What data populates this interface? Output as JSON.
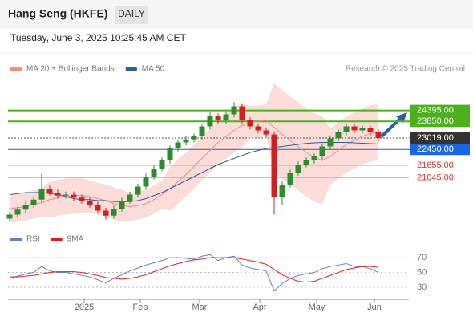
{
  "header": {
    "title": "Hang Seng (HKFE)",
    "timeframe": "DAILY",
    "timestamp": "Tuesday, June 3, 2025 10:25:45 AM CET"
  },
  "chart_data": [
    {
      "type": "candlestick",
      "source": "Research © 2025 Trading Central",
      "xlim": [
        0,
        50
      ],
      "ylim": [
        18900,
        26100
      ],
      "up_color": "#2e8b2e",
      "down_color": "#cc2222",
      "open": [
        19000,
        19200,
        19450,
        19700,
        19950,
        20500,
        20300,
        20150,
        20200,
        20050,
        19900,
        19700,
        19400,
        19150,
        19500,
        19900,
        20200,
        20600,
        21100,
        21500,
        21900,
        22500,
        22800,
        22950,
        23100,
        23600,
        24100,
        23900,
        24200,
        24600,
        23900,
        23600,
        23400,
        23200,
        20100,
        20700,
        21300,
        21700,
        21900,
        22100,
        22600,
        23000,
        23300,
        23600,
        23400,
        23500,
        23300
      ],
      "high": [
        19350,
        19600,
        19850,
        20100,
        21300,
        20650,
        20450,
        20350,
        20350,
        20200,
        20050,
        19850,
        19550,
        19650,
        20050,
        20350,
        20750,
        21250,
        21650,
        22050,
        22650,
        22950,
        23100,
        23250,
        23750,
        24300,
        24250,
        24350,
        24800,
        24750,
        24050,
        23750,
        23550,
        23350,
        20850,
        21450,
        21850,
        22050,
        22250,
        22750,
        23150,
        23450,
        23750,
        23750,
        23650,
        23650,
        23450
      ],
      "low": [
        18850,
        19050,
        19300,
        19550,
        19800,
        20150,
        20000,
        20000,
        19900,
        19750,
        19550,
        19250,
        18950,
        19000,
        19350,
        19750,
        20050,
        20450,
        20950,
        21350,
        21750,
        22350,
        22650,
        22800,
        22950,
        23450,
        23750,
        23750,
        24050,
        23750,
        23450,
        23250,
        23050,
        19200,
        19700,
        20550,
        21150,
        21550,
        21750,
        21950,
        22450,
        22850,
        23150,
        23250,
        23250,
        23150,
        22850
      ],
      "close": [
        19200,
        19450,
        19700,
        19950,
        20500,
        20300,
        20150,
        20200,
        20050,
        19900,
        19700,
        19400,
        19150,
        19500,
        19900,
        20200,
        20600,
        21100,
        21500,
        21900,
        22500,
        22800,
        22950,
        23100,
        23600,
        24100,
        23900,
        24200,
        24600,
        23900,
        23600,
        23400,
        23200,
        20100,
        20700,
        21300,
        21700,
        21900,
        22100,
        22600,
        23000,
        23300,
        23600,
        23400,
        23500,
        23300,
        23019
      ],
      "series": [
        {
          "name": "MA 20 + Bollinger Bands",
          "color": "#f28b82",
          "values": [
            19500,
            19550,
            19600,
            19700,
            19800,
            19950,
            20050,
            20100,
            20150,
            20150,
            20100,
            20000,
            19900,
            19750,
            19650,
            19600,
            19650,
            19750,
            19950,
            20200,
            20500,
            20850,
            21200,
            21600,
            22000,
            22400,
            22800,
            23100,
            23400,
            23650,
            23800,
            23850,
            23900,
            23550,
            23200,
            22900,
            22600,
            22300,
            22050,
            21900,
            22100,
            22400,
            22700,
            22900,
            23100,
            23250,
            23300
          ],
          "upper": [
            20200,
            20250,
            20300,
            20400,
            20500,
            20850,
            20950,
            21000,
            21050,
            21050,
            20900,
            20800,
            20700,
            20550,
            20450,
            20300,
            20350,
            20450,
            20650,
            20900,
            21600,
            21950,
            22300,
            22700,
            23100,
            23500,
            23900,
            24200,
            24500,
            24750,
            24600,
            24650,
            24700,
            25750,
            25400,
            25100,
            24800,
            24500,
            24250,
            24100,
            23500,
            23800,
            24100,
            24300,
            24500,
            24650,
            24700
          ],
          "lower": [
            18800,
            18850,
            18900,
            19000,
            19100,
            19050,
            19150,
            19200,
            19250,
            19250,
            19300,
            19200,
            19100,
            18950,
            18850,
            18900,
            18950,
            19050,
            19250,
            19500,
            19400,
            19750,
            20100,
            20500,
            20900,
            21300,
            21700,
            22000,
            22300,
            22550,
            23000,
            23050,
            23100,
            21350,
            21000,
            20700,
            20400,
            20100,
            19850,
            19700,
            20700,
            21000,
            21300,
            21500,
            21700,
            21850,
            21900
          ]
        },
        {
          "name": "MA 50",
          "color": "#2f5e9e",
          "values": [
            20200,
            20250,
            20300,
            20300,
            20300,
            20250,
            20200,
            20100,
            20000,
            19950,
            19950,
            19900,
            19900,
            19850,
            19850,
            19850,
            19900,
            20000,
            20150,
            20300,
            20500,
            20700,
            20900,
            21100,
            21300,
            21500,
            21700,
            21850,
            22000,
            22150,
            22300,
            22400,
            22500,
            22550,
            22600,
            22650,
            22700,
            22750,
            22780,
            22800,
            22800,
            22800,
            22800,
            22780,
            22760,
            22740,
            22720
          ]
        }
      ],
      "levels": [
        {
          "value": 24395,
          "label": "24395.00",
          "color": "#4caf1c",
          "box": "#4caf1c"
        },
        {
          "value": 23850,
          "label": "23850.00",
          "color": "#4caf1c",
          "box": "#4caf1c"
        },
        {
          "value": 23019,
          "label": "23019.00",
          "color": "#555555",
          "box": "#333333",
          "dashed": true
        },
        {
          "value": 22450,
          "label": "22450.00",
          "color": "#2f5e9e",
          "box": "#1a66e0"
        },
        {
          "value": 21655,
          "label": "21655.00",
          "color": "#f2a89a",
          "box": null
        },
        {
          "value": 21045,
          "label": "21045.00",
          "color": "#f2a89a",
          "box": null
        }
      ]
    },
    {
      "type": "line",
      "xlim": [
        0,
        50
      ],
      "ylim": [
        17,
        82
      ],
      "yticks": [
        30,
        50,
        70
      ],
      "xticks": [
        {
          "value": 9.3,
          "label": "2025"
        },
        {
          "value": 16.3,
          "label": "Feb"
        },
        {
          "value": 23.7,
          "label": "Mar"
        },
        {
          "value": 31.2,
          "label": "Apr"
        },
        {
          "value": 38.3,
          "label": "May"
        },
        {
          "value": 45.5,
          "label": "Jun"
        }
      ],
      "series": [
        {
          "name": "RSI",
          "color": "#5b7fd6",
          "values": [
            42,
            45,
            48,
            50,
            58,
            52,
            50,
            50,
            48,
            46,
            44,
            40,
            36,
            42,
            47,
            52,
            56,
            60,
            63,
            66,
            70,
            70,
            69,
            68,
            72,
            74,
            66,
            70,
            72,
            60,
            56,
            54,
            52,
            25,
            35,
            42,
            46,
            48,
            50,
            55,
            58,
            60,
            62,
            58,
            58,
            55,
            50
          ]
        },
        {
          "name": "9MA",
          "color": "#e02020",
          "values": [
            44,
            44,
            45,
            46,
            48,
            50,
            51,
            51,
            51,
            50,
            48,
            46,
            43,
            42,
            41,
            42,
            44,
            47,
            51,
            55,
            59,
            62,
            65,
            67,
            68,
            70,
            70,
            70,
            70,
            68,
            66,
            64,
            61,
            54,
            47,
            42,
            38,
            37,
            38,
            42,
            46,
            50,
            54,
            56,
            58,
            58,
            57
          ]
        }
      ]
    }
  ]
}
